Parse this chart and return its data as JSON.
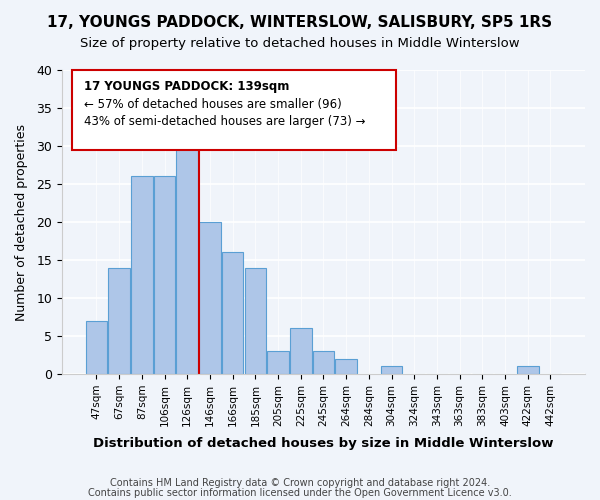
{
  "title": "17, YOUNGS PADDOCK, WINTERSLOW, SALISBURY, SP5 1RS",
  "subtitle": "Size of property relative to detached houses in Middle Winterslow",
  "xlabel": "Distribution of detached houses by size in Middle Winterslow",
  "ylabel": "Number of detached properties",
  "bar_labels": [
    "47sqm",
    "67sqm",
    "87sqm",
    "106sqm",
    "126sqm",
    "146sqm",
    "166sqm",
    "185sqm",
    "205sqm",
    "225sqm",
    "245sqm",
    "264sqm",
    "284sqm",
    "304sqm",
    "324sqm",
    "343sqm",
    "363sqm",
    "383sqm",
    "403sqm",
    "422sqm",
    "442sqm"
  ],
  "bar_values": [
    7,
    14,
    26,
    26,
    31,
    20,
    16,
    14,
    3,
    6,
    3,
    2,
    0,
    1,
    0,
    0,
    0,
    0,
    0,
    1,
    0
  ],
  "bar_color": "#aec6e8",
  "bar_edge_color": "#5a9fd4",
  "property_line_x": 139,
  "property_line_label": "17 YOUNGS PADDOCK: 139sqm",
  "annotation_line1": "← 57% of detached houses are smaller (96)",
  "annotation_line2": "43% of semi-detached houses are larger (73) →",
  "vline_color": "#cc0000",
  "vline_bin_index": 4.5,
  "ylim": [
    0,
    40
  ],
  "yticks": [
    0,
    5,
    10,
    15,
    20,
    25,
    30,
    35,
    40
  ],
  "footnote1": "Contains HM Land Registry data © Crown copyright and database right 2024.",
  "footnote2": "Contains public sector information licensed under the Open Government Licence v3.0.",
  "bg_color": "#f0f4fa",
  "annotation_box_color": "#ffffff",
  "annotation_box_edge": "#cc0000"
}
